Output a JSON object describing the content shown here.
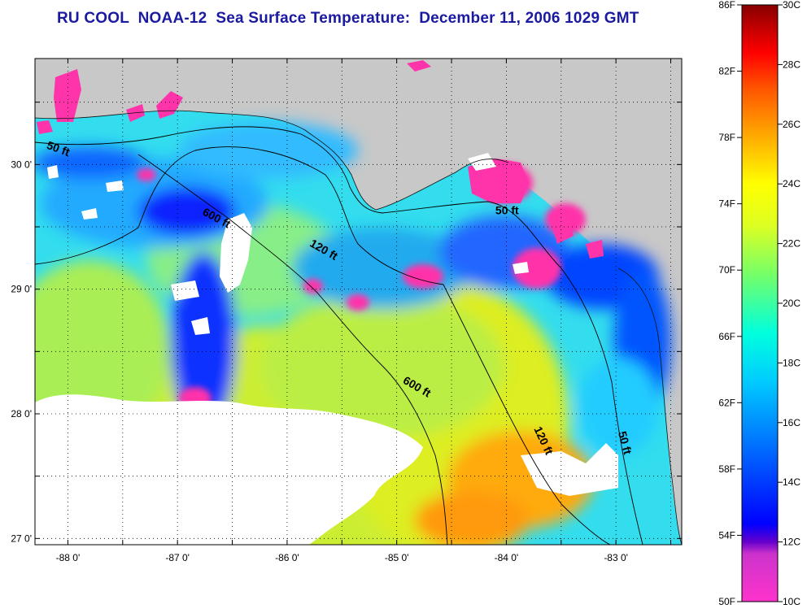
{
  "title": "RU COOL  NOAA-12  Sea Surface Temperature:  December 11, 2006 1029 GMT",
  "map": {
    "lon_range": [
      -88.3,
      -82.4
    ],
    "lat_range": [
      26.95,
      30.85
    ],
    "x_ticks": [
      {
        "value": -88,
        "label": "-88 0'"
      },
      {
        "value": -87,
        "label": "-87 0'"
      },
      {
        "value": -86,
        "label": "-86 0'"
      },
      {
        "value": -85,
        "label": "-85 0'"
      },
      {
        "value": -84,
        "label": "-84 0'"
      },
      {
        "value": -83,
        "label": "-83 0'"
      }
    ],
    "y_ticks": [
      {
        "value": 30,
        "label": "30 0'"
      },
      {
        "value": 29,
        "label": "29 0'"
      },
      {
        "value": 28,
        "label": "28 0'"
      },
      {
        "value": 27,
        "label": "27 0'"
      }
    ],
    "gridlines": true,
    "land_color": "#c8c8c8",
    "no_data_color": "#ffffff",
    "contour_labels": [
      {
        "text": "50 ft",
        "lon": -88.2,
        "lat": 30.13,
        "rotate": 20
      },
      {
        "text": "600 ft",
        "lon": -86.78,
        "lat": 29.6,
        "rotate": 28
      },
      {
        "text": "120 ft",
        "lon": -85.8,
        "lat": 29.35,
        "rotate": 30
      },
      {
        "text": "50 ft",
        "lon": -84.1,
        "lat": 29.6,
        "rotate": 0
      },
      {
        "text": "600 ft",
        "lon": -84.95,
        "lat": 28.25,
        "rotate": 30
      },
      {
        "text": "120 ft",
        "lon": -83.75,
        "lat": 27.88,
        "rotate": 65
      },
      {
        "text": "50 ft",
        "lon": -82.98,
        "lat": 27.85,
        "rotate": 75
      }
    ]
  },
  "colorbar": {
    "colors": [
      "#ff33cc",
      "#9933cc",
      "#0000ff",
      "#0099ff",
      "#00ffff",
      "#66ff99",
      "#ccff33",
      "#ffff00",
      "#ff9900",
      "#ff3300",
      "#ff0000",
      "#990000"
    ],
    "fahrenheit_labels": [
      "86F",
      "82F",
      "78F",
      "74F",
      "70F",
      "66F",
      "62F",
      "58F",
      "54F",
      "50F"
    ],
    "celsius_labels": [
      "30C",
      "28C",
      "26C",
      "24C",
      "22C",
      "20C",
      "18C",
      "16C",
      "14C",
      "12C",
      "10C"
    ]
  }
}
